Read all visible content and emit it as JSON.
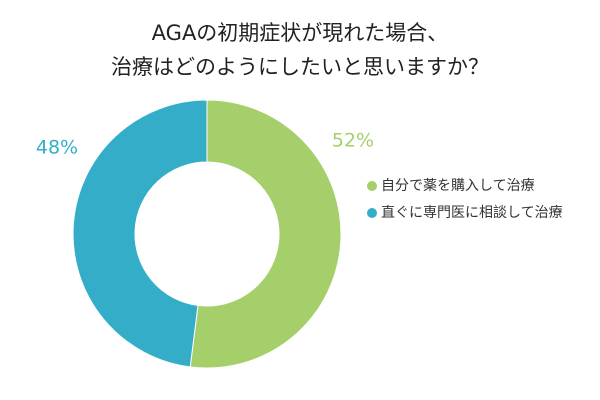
{
  "chart_data": {
    "type": "donut",
    "title": [
      "AGAの初期症状が現れた場合、",
      "治療はどのようにしたいと思いますか？"
    ],
    "categories": [
      "自分で薬を購入して治療",
      "直ぐに専門医に相談して治療"
    ],
    "values": [
      52,
      48
    ],
    "value_labels": [
      "52%",
      "48%"
    ],
    "colors": [
      "#a5cf6a",
      "#34aec8"
    ],
    "legend": "right"
  }
}
